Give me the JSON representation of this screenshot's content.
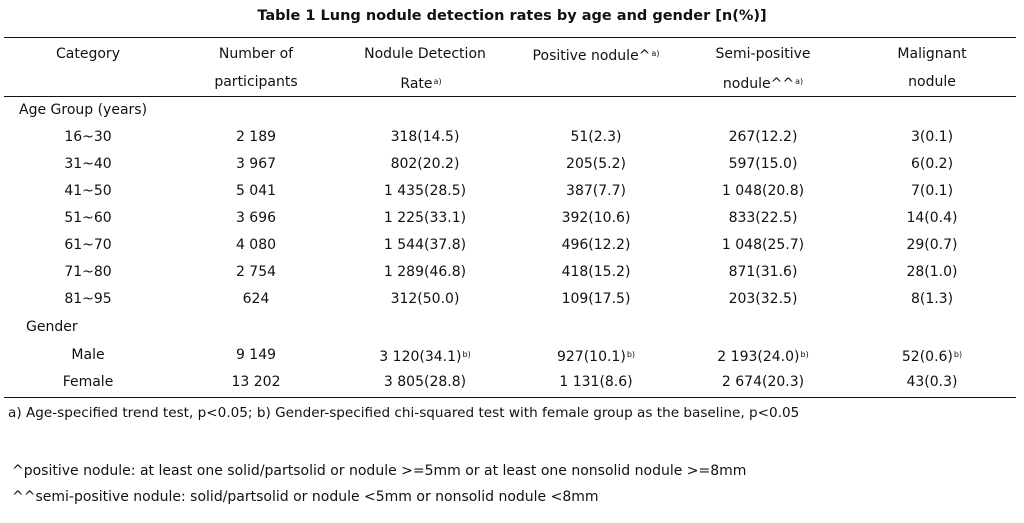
{
  "title": "Table 1 Lung nodule detection rates by age and gender [n(%)]",
  "headers": {
    "category": "Category",
    "participants_1": "Number of",
    "participants_2": "participants",
    "detection_1": "Nodule Detection",
    "detection_2": "Rate",
    "detection_sup": "a)",
    "positive_1": "Positive nodule^",
    "positive_sup": "a)",
    "semi_1": "Semi-positive",
    "semi_2": "nodule^^",
    "semi_sup": "a)",
    "malignant_1": "Malignant",
    "malignant_2": "nodule"
  },
  "sections": {
    "age": "Age Group (years)",
    "gender": "Gender"
  },
  "age_rows": [
    {
      "label": "16~30",
      "n": "2 189",
      "rate": "318(14.5)",
      "pos": "51(2.3)",
      "semi": "267(12.2)",
      "mal": "3(0.1)"
    },
    {
      "label": "31~40",
      "n": "3 967",
      "rate": "802(20.2)",
      "pos": "205(5.2)",
      "semi": "597(15.0)",
      "mal": "6(0.2)"
    },
    {
      "label": "41~50",
      "n": "5 041",
      "rate": "1 435(28.5)",
      "pos": "387(7.7)",
      "semi": "1 048(20.8)",
      "mal": "7(0.1)"
    },
    {
      "label": "51~60",
      "n": "3 696",
      "rate": "1 225(33.1)",
      "pos": "392(10.6)",
      "semi": "833(22.5)",
      "mal": "14(0.4)"
    },
    {
      "label": "61~70",
      "n": "4 080",
      "rate": "1 544(37.8)",
      "pos": "496(12.2)",
      "semi": "1 048(25.7)",
      "mal": "29(0.7)"
    },
    {
      "label": "71~80",
      "n": "2 754",
      "rate": "1 289(46.8)",
      "pos": "418(15.2)",
      "semi": "871(31.6)",
      "mal": "28(1.0)"
    },
    {
      "label": "81~95",
      "n": "624",
      "rate": "312(50.0)",
      "pos": "109(17.5)",
      "semi": "203(32.5)",
      "mal": "8(1.3)"
    }
  ],
  "gender_rows": [
    {
      "label": "Male",
      "n": "9 149",
      "rate": "3 120(34.1)",
      "rate_sup": "b)",
      "pos": "927(10.1)",
      "pos_sup": "b)",
      "semi": "2 193(24.0)",
      "semi_sup": "b)",
      "mal": "52(0.6)",
      "mal_sup": "b)"
    },
    {
      "label": "Female",
      "n": "13 202",
      "rate": "3 805(28.8)",
      "pos": "1 131(8.6)",
      "semi": "2 674(20.3)",
      "mal": "43(0.3)"
    }
  ],
  "notes": {
    "trend": "a) Age-specified trend test, p<0.05; b) Gender-specified chi-squared test with female group as the baseline, p<0.05",
    "positive_def": "^positive nodule: at least one solid/partsolid or nodule >=5mm or at least one nonsolid nodule >=8mm",
    "semi_def": "^^semi-positive nodule: solid/partsolid or nodule <5mm or nonsolid nodule <8mm"
  }
}
